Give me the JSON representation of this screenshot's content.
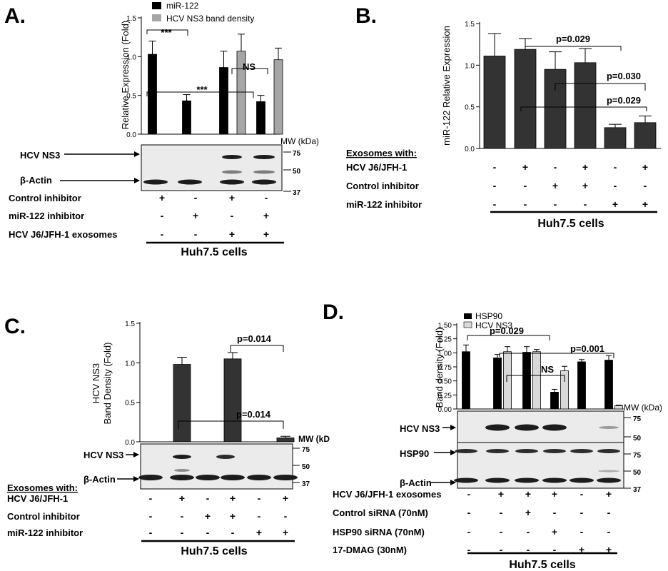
{
  "panels": {
    "A": {
      "label": "A.",
      "ylabel": "Relative Expression (Fold)",
      "legend": [
        "miR-122",
        "HCV NS3 band density"
      ],
      "mw_title": "MW (kDa)",
      "mw": [
        "75",
        "50",
        "37"
      ],
      "blots": [
        "HCV NS3",
        "β-Actin"
      ],
      "rows": [
        {
          "label": "Control inhibitor",
          "signs": [
            "+",
            "-",
            "+",
            "-"
          ]
        },
        {
          "label": "miR-122 inhibitor",
          "signs": [
            "-",
            "+",
            "-",
            "+"
          ]
        },
        {
          "label": "HCV J6/JFH-1 exosomes",
          "signs": [
            "-",
            "-",
            "+",
            "+"
          ]
        }
      ],
      "cells": "Huh7.5 cells",
      "annotations": [
        "***",
        "***",
        "NS"
      ]
    },
    "B": {
      "label": "B.",
      "ylabel": "miR-122 Relative Expression",
      "header": "Exosomes with:",
      "rows": [
        {
          "label": "HCV J6/JFH-1",
          "signs": [
            "-",
            "+",
            "-",
            "+",
            "-",
            "+"
          ]
        },
        {
          "label": "Control inhibitor",
          "signs": [
            "-",
            "-",
            "+",
            "+",
            "-",
            "-"
          ]
        },
        {
          "label": "miR-122 inhibitor",
          "signs": [
            "-",
            "-",
            "-",
            "-",
            "+",
            "+"
          ]
        }
      ],
      "cells": "Huh7.5 cells",
      "annotations": [
        "p=0.029",
        "p=0.030",
        "p=0.029"
      ]
    },
    "C": {
      "label": "C.",
      "ylabel": [
        "HCV NS3",
        "Band Density (Fold)"
      ],
      "mw_title": "MW (kD",
      "mw": [
        "75",
        "50",
        "37"
      ],
      "blots": [
        "HCV NS3",
        "β-Actin"
      ],
      "header": "Exosomes with:",
      "rows": [
        {
          "label": "HCV J6/JFH-1",
          "signs": [
            "-",
            "+",
            "-",
            "+",
            "-",
            "+"
          ]
        },
        {
          "label": "Control inhibitor",
          "signs": [
            "-",
            "-",
            "+",
            "+",
            "-",
            "-"
          ]
        },
        {
          "label": "miR-122 inhibitor",
          "signs": [
            "-",
            "-",
            "-",
            "-",
            "+",
            "+"
          ]
        }
      ],
      "cells": "Huh7.5 cells",
      "annotations": [
        "p=0.014",
        "p=0.014"
      ]
    },
    "D": {
      "label": "D.",
      "ylabel": "Band density (Fold)",
      "legend": [
        "HSP90",
        "HCV NS3"
      ],
      "mw_title": "MW (kDa)",
      "mw": [
        "75",
        "50",
        "75",
        "50",
        "37"
      ],
      "blots": [
        "HCV NS3",
        "HSP90",
        "β-Actin"
      ],
      "rows": [
        {
          "label": "HCV J6/JFH-1 exosomes",
          "signs": [
            "-",
            "+",
            "+",
            "+",
            "-",
            "+"
          ]
        },
        {
          "label": "Control siRNA (70nM)",
          "signs": [
            "-",
            "-",
            "+",
            "-",
            "-",
            "-"
          ]
        },
        {
          "label": "HSP90 siRNA (70nM)",
          "signs": [
            "-",
            "-",
            "-",
            "+",
            "-",
            "-"
          ]
        },
        {
          "label": "17-DMAG (30nM)",
          "signs": [
            "-",
            "-",
            "-",
            "-",
            "+",
            "+"
          ]
        }
      ],
      "cells": "Huh7.5 cells",
      "annotations": [
        "p=0.029",
        "p=0.001",
        "NS"
      ]
    }
  },
  "chart_data": [
    {
      "panel": "A",
      "type": "bar",
      "ylabel": "Relative Expression (Fold)",
      "ylim": [
        0,
        1.5
      ],
      "yticks": [
        0,
        0.5,
        1.0,
        1.5
      ],
      "categories": [
        "1",
        "2",
        "3",
        "4"
      ],
      "series": [
        {
          "name": "miR-122",
          "color": "#000000",
          "values": [
            1.03,
            0.43,
            0.86,
            0.42
          ],
          "errors": [
            0.17,
            0.08,
            0.21,
            0.08
          ]
        },
        {
          "name": "HCV NS3 band density",
          "color": "#a6a6a6",
          "values": [
            null,
            null,
            1.07,
            0.96
          ],
          "errors": [
            null,
            null,
            0.22,
            0.15
          ]
        }
      ],
      "legend": "top"
    },
    {
      "panel": "B",
      "type": "bar",
      "ylabel": "miR-122 Relative Expression",
      "ylim": [
        0,
        1.5
      ],
      "yticks": [
        0,
        0.5,
        1.0,
        1.5
      ],
      "categories": [
        "1",
        "2",
        "3",
        "4",
        "5",
        "6"
      ],
      "series": [
        {
          "color": "#333333",
          "values": [
            1.11,
            1.19,
            0.95,
            1.03,
            0.25,
            0.31
          ],
          "errors": [
            0.27,
            0.13,
            0.21,
            0.17,
            0.04,
            0.08
          ]
        }
      ]
    },
    {
      "panel": "C",
      "type": "bar",
      "ylabel": "HCV NS3 Band Density (Fold)",
      "ylim": [
        0,
        1.5
      ],
      "yticks": [
        0,
        0.5,
        1.0,
        1.5
      ],
      "categories": [
        "1",
        "2",
        "3",
        "4",
        "5",
        "6"
      ],
      "series": [
        {
          "color": "#333333",
          "values": [
            0,
            0.98,
            0,
            1.05,
            0,
            0.05
          ],
          "errors": [
            0,
            0.09,
            0,
            0.08,
            0,
            0.02
          ]
        }
      ]
    },
    {
      "panel": "D",
      "type": "bar",
      "ylabel": "Band density (Fold)",
      "ylim": [
        0,
        1.5
      ],
      "yticks": [
        0,
        0.25,
        0.5,
        0.75,
        1.0,
        1.25,
        1.5
      ],
      "categories": [
        "1",
        "2",
        "3",
        "4",
        "5",
        "6"
      ],
      "series": [
        {
          "name": "HSP90",
          "color": "#000000",
          "values": [
            1.02,
            0.91,
            1.01,
            0.3,
            0.84,
            0.87
          ],
          "errors": [
            0.12,
            0.06,
            0.1,
            0.05,
            0.04,
            0.08
          ]
        },
        {
          "name": "HCV NS3",
          "color": "#d9d9d9",
          "values": [
            null,
            1.02,
            1.02,
            0.68,
            null,
            0.06
          ],
          "errors": [
            null,
            0.09,
            0.04,
            0.08,
            null,
            0.01
          ]
        }
      ],
      "legend": "top-left"
    }
  ]
}
